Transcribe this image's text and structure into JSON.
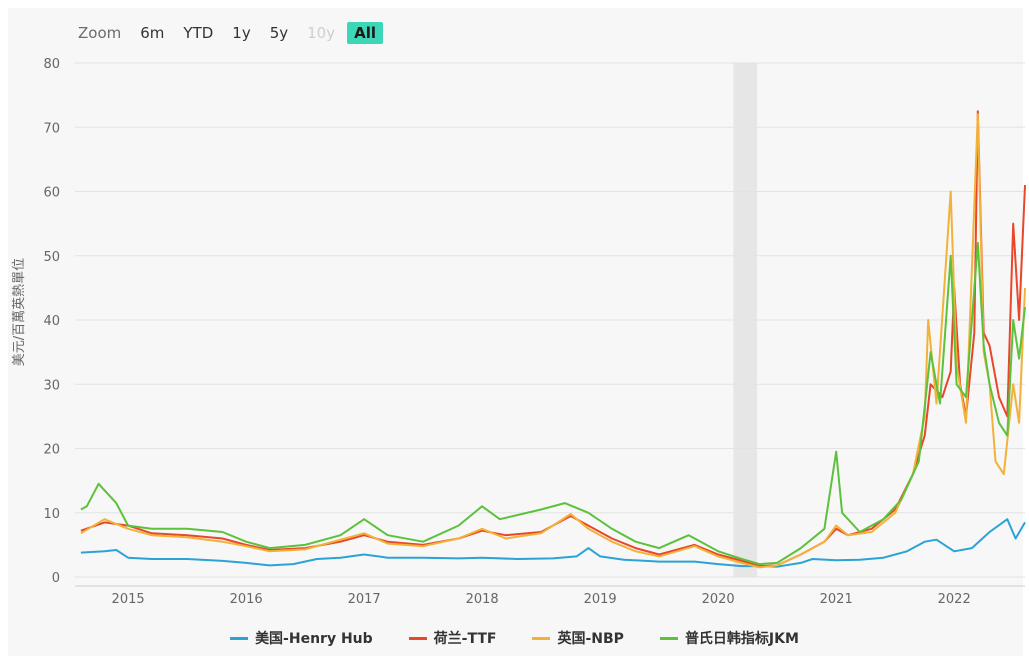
{
  "zoom": {
    "label": "Zoom",
    "buttons": [
      "6m",
      "YTD",
      "1y",
      "5y",
      "10y",
      "All"
    ],
    "disabled": [
      "10y"
    ],
    "selected": "All",
    "accent_color": "#3dd6b7"
  },
  "chart_data": {
    "type": "line",
    "title": "",
    "ylabel": "美元/百萬英熱單位",
    "xlabel": "",
    "x_ticks": [
      "2015",
      "2016",
      "2017",
      "2018",
      "2019",
      "2020",
      "2021",
      "2022"
    ],
    "y_ticks": [
      "0",
      "10",
      "20",
      "30",
      "40",
      "50",
      "60",
      "70",
      "80"
    ],
    "xlim": [
      2014.55,
      2022.6
    ],
    "ylim": [
      0,
      80
    ],
    "grid": true,
    "legend_position": "bottom",
    "highlight_band": [
      2020.13,
      2020.33
    ],
    "series": [
      {
        "name": "美国-Henry Hub",
        "color": "#2ba3d6",
        "points": [
          [
            2014.6,
            3.8
          ],
          [
            2014.8,
            4.0
          ],
          [
            2014.9,
            4.2
          ],
          [
            2015.0,
            3.0
          ],
          [
            2015.2,
            2.8
          ],
          [
            2015.5,
            2.8
          ],
          [
            2015.8,
            2.5
          ],
          [
            2016.0,
            2.2
          ],
          [
            2016.2,
            1.8
          ],
          [
            2016.4,
            2.0
          ],
          [
            2016.6,
            2.8
          ],
          [
            2016.8,
            3.0
          ],
          [
            2017.0,
            3.5
          ],
          [
            2017.2,
            3.0
          ],
          [
            2017.5,
            3.0
          ],
          [
            2017.8,
            2.9
          ],
          [
            2018.0,
            3.0
          ],
          [
            2018.3,
            2.8
          ],
          [
            2018.6,
            2.9
          ],
          [
            2018.8,
            3.2
          ],
          [
            2018.9,
            4.5
          ],
          [
            2019.0,
            3.2
          ],
          [
            2019.2,
            2.7
          ],
          [
            2019.5,
            2.4
          ],
          [
            2019.8,
            2.4
          ],
          [
            2020.0,
            2.0
          ],
          [
            2020.2,
            1.7
          ],
          [
            2020.4,
            1.7
          ],
          [
            2020.5,
            1.6
          ],
          [
            2020.7,
            2.2
          ],
          [
            2020.8,
            2.8
          ],
          [
            2021.0,
            2.6
          ],
          [
            2021.2,
            2.7
          ],
          [
            2021.4,
            3.0
          ],
          [
            2021.6,
            4.0
          ],
          [
            2021.75,
            5.5
          ],
          [
            2021.85,
            5.8
          ],
          [
            2022.0,
            4.0
          ],
          [
            2022.15,
            4.5
          ],
          [
            2022.3,
            7.0
          ],
          [
            2022.45,
            9.0
          ],
          [
            2022.52,
            6.0
          ],
          [
            2022.6,
            8.5
          ]
        ]
      },
      {
        "name": "荷兰-TTF",
        "color": "#e8472a",
        "points": [
          [
            2014.6,
            7.2
          ],
          [
            2014.8,
            8.5
          ],
          [
            2015.0,
            8.0
          ],
          [
            2015.2,
            6.8
          ],
          [
            2015.5,
            6.5
          ],
          [
            2015.8,
            6.0
          ],
          [
            2016.0,
            5.0
          ],
          [
            2016.2,
            4.2
          ],
          [
            2016.5,
            4.5
          ],
          [
            2016.8,
            5.5
          ],
          [
            2017.0,
            6.5
          ],
          [
            2017.2,
            5.5
          ],
          [
            2017.5,
            5.0
          ],
          [
            2017.8,
            6.0
          ],
          [
            2018.0,
            7.2
          ],
          [
            2018.2,
            6.5
          ],
          [
            2018.5,
            7.0
          ],
          [
            2018.75,
            9.5
          ],
          [
            2018.9,
            8.0
          ],
          [
            2019.1,
            6.0
          ],
          [
            2019.3,
            4.5
          ],
          [
            2019.5,
            3.5
          ],
          [
            2019.8,
            5.0
          ],
          [
            2020.0,
            3.5
          ],
          [
            2020.2,
            2.5
          ],
          [
            2020.35,
            1.7
          ],
          [
            2020.5,
            1.8
          ],
          [
            2020.7,
            3.5
          ],
          [
            2020.9,
            5.5
          ],
          [
            2021.0,
            7.5
          ],
          [
            2021.1,
            6.5
          ],
          [
            2021.3,
            7.5
          ],
          [
            2021.5,
            10.5
          ],
          [
            2021.65,
            16.0
          ],
          [
            2021.75,
            22.0
          ],
          [
            2021.8,
            30.0
          ],
          [
            2021.9,
            28.0
          ],
          [
            2021.97,
            32.0
          ],
          [
            2022.0,
            45.0
          ],
          [
            2022.05,
            30.0
          ],
          [
            2022.1,
            25.0
          ],
          [
            2022.17,
            38.0
          ],
          [
            2022.2,
            72.5
          ],
          [
            2022.25,
            38.0
          ],
          [
            2022.3,
            36.0
          ],
          [
            2022.38,
            28.0
          ],
          [
            2022.45,
            25.0
          ],
          [
            2022.5,
            55.0
          ],
          [
            2022.55,
            40.0
          ],
          [
            2022.6,
            61.0
          ]
        ]
      },
      {
        "name": "英国-NBP",
        "color": "#f2b23a",
        "points": [
          [
            2014.6,
            6.8
          ],
          [
            2014.8,
            9.0
          ],
          [
            2015.0,
            7.5
          ],
          [
            2015.2,
            6.5
          ],
          [
            2015.5,
            6.2
          ],
          [
            2015.8,
            5.5
          ],
          [
            2016.0,
            4.8
          ],
          [
            2016.2,
            4.0
          ],
          [
            2016.5,
            4.3
          ],
          [
            2016.8,
            5.8
          ],
          [
            2017.0,
            6.8
          ],
          [
            2017.2,
            5.2
          ],
          [
            2017.5,
            4.8
          ],
          [
            2017.8,
            6.0
          ],
          [
            2018.0,
            7.5
          ],
          [
            2018.2,
            6.0
          ],
          [
            2018.5,
            6.8
          ],
          [
            2018.75,
            9.8
          ],
          [
            2018.9,
            7.5
          ],
          [
            2019.1,
            5.5
          ],
          [
            2019.3,
            4.0
          ],
          [
            2019.5,
            3.2
          ],
          [
            2019.8,
            4.8
          ],
          [
            2020.0,
            3.2
          ],
          [
            2020.2,
            2.2
          ],
          [
            2020.35,
            1.5
          ],
          [
            2020.5,
            1.8
          ],
          [
            2020.7,
            3.5
          ],
          [
            2020.9,
            5.5
          ],
          [
            2021.0,
            8.0
          ],
          [
            2021.1,
            6.5
          ],
          [
            2021.3,
            7.0
          ],
          [
            2021.5,
            10.0
          ],
          [
            2021.65,
            16.0
          ],
          [
            2021.75,
            25.0
          ],
          [
            2021.78,
            40.0
          ],
          [
            2021.85,
            27.0
          ],
          [
            2021.97,
            60.0
          ],
          [
            2022.02,
            33.0
          ],
          [
            2022.1,
            24.0
          ],
          [
            2022.2,
            72.0
          ],
          [
            2022.25,
            35.0
          ],
          [
            2022.3,
            30.0
          ],
          [
            2022.35,
            18.0
          ],
          [
            2022.42,
            16.0
          ],
          [
            2022.5,
            30.0
          ],
          [
            2022.55,
            24.0
          ],
          [
            2022.6,
            45.0
          ]
        ]
      },
      {
        "name": "普氏日韩指标JKM",
        "color": "#5cc13b",
        "points": [
          [
            2014.6,
            10.5
          ],
          [
            2014.65,
            11.0
          ],
          [
            2014.75,
            14.5
          ],
          [
            2014.8,
            13.5
          ],
          [
            2014.9,
            11.5
          ],
          [
            2015.0,
            8.0
          ],
          [
            2015.2,
            7.5
          ],
          [
            2015.5,
            7.5
          ],
          [
            2015.8,
            7.0
          ],
          [
            2016.0,
            5.5
          ],
          [
            2016.2,
            4.5
          ],
          [
            2016.5,
            5.0
          ],
          [
            2016.8,
            6.5
          ],
          [
            2017.0,
            9.0
          ],
          [
            2017.2,
            6.5
          ],
          [
            2017.5,
            5.5
          ],
          [
            2017.8,
            8.0
          ],
          [
            2018.0,
            11.0
          ],
          [
            2018.15,
            9.0
          ],
          [
            2018.5,
            10.5
          ],
          [
            2018.7,
            11.5
          ],
          [
            2018.9,
            10.0
          ],
          [
            2019.1,
            7.5
          ],
          [
            2019.3,
            5.5
          ],
          [
            2019.5,
            4.5
          ],
          [
            2019.75,
            6.5
          ],
          [
            2020.0,
            4.0
          ],
          [
            2020.2,
            2.8
          ],
          [
            2020.35,
            2.0
          ],
          [
            2020.5,
            2.2
          ],
          [
            2020.7,
            4.5
          ],
          [
            2020.9,
            7.5
          ],
          [
            2021.0,
            19.5
          ],
          [
            2021.05,
            10.0
          ],
          [
            2021.2,
            7.0
          ],
          [
            2021.4,
            9.0
          ],
          [
            2021.55,
            12.0
          ],
          [
            2021.7,
            18.0
          ],
          [
            2021.8,
            35.0
          ],
          [
            2021.88,
            27.0
          ],
          [
            2021.97,
            50.0
          ],
          [
            2022.02,
            30.0
          ],
          [
            2022.1,
            28.0
          ],
          [
            2022.2,
            52.0
          ],
          [
            2022.25,
            36.0
          ],
          [
            2022.3,
            30.0
          ],
          [
            2022.38,
            24.0
          ],
          [
            2022.45,
            22.0
          ],
          [
            2022.5,
            40.0
          ],
          [
            2022.55,
            34.0
          ],
          [
            2022.6,
            42.0
          ]
        ]
      }
    ]
  }
}
